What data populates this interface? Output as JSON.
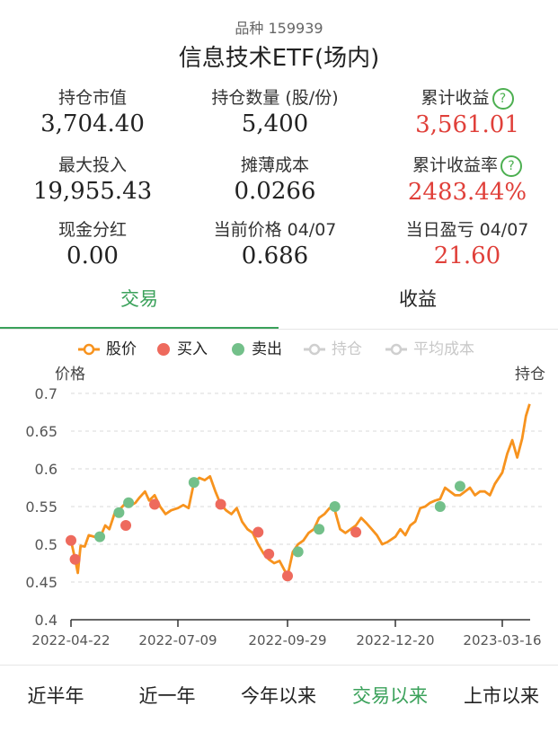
{
  "fund": {
    "code_label": "品种 159939",
    "name": "信息技术ETF(场内)"
  },
  "stats": [
    {
      "label": "持仓市值",
      "value": "3,704.40",
      "red": false,
      "help": false
    },
    {
      "label": "持仓数量 (股/份)",
      "value": "5,400",
      "red": false,
      "help": false
    },
    {
      "label": "累计收益",
      "value": "3,561.01",
      "red": true,
      "help": true
    },
    {
      "label": "最大投入",
      "value": "19,955.43",
      "red": false,
      "help": false
    },
    {
      "label": "摊薄成本",
      "value": "0.0266",
      "red": false,
      "help": false
    },
    {
      "label": "累计收益率",
      "value": "2483.44%",
      "red": true,
      "help": true
    },
    {
      "label": "现金分红",
      "value": "0.00",
      "red": false,
      "help": false
    },
    {
      "label": "当前价格 04/07",
      "value": "0.686",
      "red": false,
      "help": false
    },
    {
      "label": "当日盈亏 04/07",
      "value": "21.60",
      "red": true,
      "help": false
    }
  ],
  "help_glyph": "?",
  "tabs": [
    {
      "label": "交易",
      "active": true
    },
    {
      "label": "收益",
      "active": false
    }
  ],
  "legend": [
    {
      "label": "股价",
      "kind": "line",
      "color": "#f7931e",
      "dim": false
    },
    {
      "label": "买入",
      "kind": "dot",
      "color": "#ee6a5d",
      "dim": false
    },
    {
      "label": "卖出",
      "kind": "dot",
      "color": "#73c08a",
      "dim": false
    },
    {
      "label": "持仓",
      "kind": "line",
      "color": "#cfcfcf",
      "dim": true
    },
    {
      "label": "平均成本",
      "kind": "line",
      "color": "#cfcfcf",
      "dim": true
    }
  ],
  "colors": {
    "accent": "#3aa15a",
    "price_line": "#f7931e",
    "buy": "#ee6a5d",
    "sell": "#73c08a",
    "profit": "#e0403a"
  },
  "chart_data": {
    "type": "line",
    "ylabel": "价格",
    "y2label": "持仓",
    "ylim": [
      0.4,
      0.7
    ],
    "yticks": [
      "0.7",
      "0.65",
      "0.6",
      "0.55",
      "0.5",
      "0.45",
      "0.4"
    ],
    "xticks": [
      "2022-04-22",
      "2022-07-09",
      "2022-09-29",
      "2022-12-20",
      "2023-03-16"
    ],
    "grid": true,
    "legend_position": "top",
    "series": [
      {
        "name": "股价",
        "x": [
          "2022-04-22",
          "2022-04-25",
          "2022-04-27",
          "2022-04-29",
          "2022-05-02",
          "2022-05-05",
          "2022-05-09",
          "2022-05-13",
          "2022-05-17",
          "2022-05-20",
          "2022-05-24",
          "2022-05-27",
          "2022-06-01",
          "2022-06-03",
          "2022-06-08",
          "2022-06-11",
          "2022-06-15",
          "2022-06-18",
          "2022-06-22",
          "2022-06-26",
          "2022-06-30",
          "2022-07-04",
          "2022-07-09",
          "2022-07-13",
          "2022-07-17",
          "2022-07-21",
          "2022-07-25",
          "2022-07-29",
          "2022-08-02",
          "2022-08-06",
          "2022-08-10",
          "2022-08-14",
          "2022-08-18",
          "2022-08-22",
          "2022-08-26",
          "2022-08-30",
          "2022-09-03",
          "2022-09-07",
          "2022-09-11",
          "2022-09-15",
          "2022-09-19",
          "2022-09-23",
          "2022-09-29",
          "2022-10-03",
          "2022-10-07",
          "2022-10-11",
          "2022-10-15",
          "2022-10-19",
          "2022-10-23",
          "2022-10-27",
          "2022-10-31",
          "2022-11-04",
          "2022-11-08",
          "2022-11-12",
          "2022-11-16",
          "2022-11-20",
          "2022-11-24",
          "2022-11-28",
          "2022-12-02",
          "2022-12-06",
          "2022-12-10",
          "2022-12-14",
          "2022-12-20",
          "2022-12-24",
          "2022-12-28",
          "2023-01-01",
          "2023-01-05",
          "2023-01-09",
          "2023-01-13",
          "2023-01-17",
          "2023-01-21",
          "2023-01-25",
          "2023-01-29",
          "2023-02-02",
          "2023-02-06",
          "2023-02-10",
          "2023-02-14",
          "2023-02-18",
          "2023-02-22",
          "2023-02-26",
          "2023-03-02",
          "2023-03-06",
          "2023-03-10",
          "2023-03-16",
          "2023-03-20",
          "2023-03-24",
          "2023-03-28",
          "2023-04-01",
          "2023-04-04",
          "2023-04-07"
        ],
        "values": [
          0.505,
          0.48,
          0.462,
          0.498,
          0.497,
          0.512,
          0.51,
          0.508,
          0.525,
          0.52,
          0.542,
          0.545,
          0.555,
          0.55,
          0.555,
          0.562,
          0.57,
          0.558,
          0.565,
          0.55,
          0.54,
          0.545,
          0.548,
          0.552,
          0.548,
          0.582,
          0.588,
          0.585,
          0.59,
          0.57,
          0.553,
          0.545,
          0.54,
          0.548,
          0.53,
          0.52,
          0.515,
          0.5,
          0.488,
          0.48,
          0.475,
          0.478,
          0.458,
          0.49,
          0.5,
          0.505,
          0.515,
          0.52,
          0.535,
          0.54,
          0.548,
          0.545,
          0.52,
          0.515,
          0.52,
          0.525,
          0.535,
          0.528,
          0.52,
          0.512,
          0.5,
          0.503,
          0.51,
          0.52,
          0.512,
          0.525,
          0.53,
          0.548,
          0.55,
          0.555,
          0.558,
          0.56,
          0.575,
          0.57,
          0.565,
          0.565,
          0.57,
          0.575,
          0.565,
          0.57,
          0.57,
          0.565,
          0.58,
          0.595,
          0.62,
          0.638,
          0.615,
          0.64,
          0.67,
          0.686
        ]
      }
    ],
    "buy_points": [
      {
        "x": "2022-04-22",
        "y": 0.505
      },
      {
        "x": "2022-04-25",
        "y": 0.48
      },
      {
        "x": "2022-06-01",
        "y": 0.525
      },
      {
        "x": "2022-06-22",
        "y": 0.553
      },
      {
        "x": "2022-08-10",
        "y": 0.553
      },
      {
        "x": "2022-09-07",
        "y": 0.516
      },
      {
        "x": "2022-09-15",
        "y": 0.487
      },
      {
        "x": "2022-09-29",
        "y": 0.458
      },
      {
        "x": "2022-11-20",
        "y": 0.516
      }
    ],
    "sell_points": [
      {
        "x": "2022-05-13",
        "y": 0.51
      },
      {
        "x": "2022-05-27",
        "y": 0.542
      },
      {
        "x": "2022-06-03",
        "y": 0.555
      },
      {
        "x": "2022-07-21",
        "y": 0.582
      },
      {
        "x": "2022-10-07",
        "y": 0.49
      },
      {
        "x": "2022-10-23",
        "y": 0.52
      },
      {
        "x": "2022-11-04",
        "y": 0.55
      },
      {
        "x": "2023-01-25",
        "y": 0.55
      },
      {
        "x": "2023-02-10",
        "y": 0.577
      }
    ]
  },
  "ranges": [
    {
      "label": "近半年",
      "active": false
    },
    {
      "label": "近一年",
      "active": false
    },
    {
      "label": "今年以来",
      "active": false
    },
    {
      "label": "交易以来",
      "active": true
    },
    {
      "label": "上市以来",
      "active": false
    }
  ]
}
